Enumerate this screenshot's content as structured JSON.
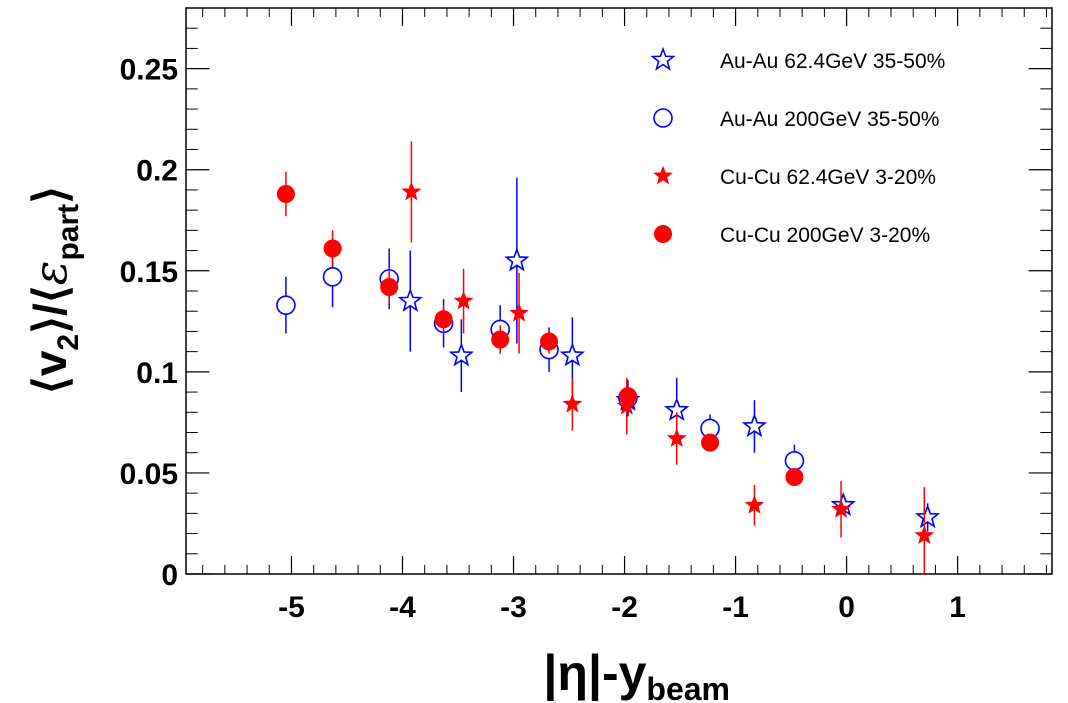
{
  "chart_data": {
    "type": "scatter",
    "xlabel": "|η|-y",
    "xlabel_sub": "beam",
    "ylabel_v": "v",
    "ylabel_v_sub": "2",
    "ylabel_eps": "ε",
    "ylabel_eps_sub": "part",
    "xlim": [
      -5.95,
      1.85
    ],
    "ylim": [
      0,
      0.28
    ],
    "x_ticks": [
      -5,
      -4,
      -3,
      -2,
      -1,
      0,
      1
    ],
    "x_tick_labels": [
      "-5",
      "-4",
      "-3",
      "-2",
      "-1",
      "0",
      "1"
    ],
    "y_ticks": [
      0,
      0.05,
      0.1,
      0.15,
      0.2,
      0.25
    ],
    "y_tick_labels": [
      "0",
      "0.05",
      "0.1",
      "0.15",
      "0.2",
      "0.25"
    ],
    "grid": false,
    "legend_position": "top-right",
    "series": [
      {
        "name": "Au-Au 62.4GeV 35-50%",
        "color": "#0000ff",
        "marker": "open-star",
        "points": [
          {
            "x": -3.93,
            "y": 0.135,
            "err": 0.025
          },
          {
            "x": -3.47,
            "y": 0.108,
            "err": 0.018
          },
          {
            "x": -2.97,
            "y": 0.155,
            "err": 0.041
          },
          {
            "x": -2.47,
            "y": 0.108,
            "err": 0.019
          },
          {
            "x": -1.97,
            "y": 0.086,
            "err": 0.008
          },
          {
            "x": -1.53,
            "y": 0.081,
            "err": 0.016
          },
          {
            "x": -0.83,
            "y": 0.073,
            "err": 0.013
          },
          {
            "x": -0.03,
            "y": 0.034,
            "err": 0.004
          },
          {
            "x": 0.73,
            "y": 0.028,
            "err": 0.007
          }
        ]
      },
      {
        "name": "Au-Au 200GeV 35-50%",
        "color": "#0000ff",
        "marker": "open-circle",
        "points": [
          {
            "x": -5.05,
            "y": 0.133,
            "err": 0.014
          },
          {
            "x": -4.63,
            "y": 0.147,
            "err": 0.015
          },
          {
            "x": -4.12,
            "y": 0.146,
            "err": 0.015
          },
          {
            "x": -3.63,
            "y": 0.124,
            "err": 0.012
          },
          {
            "x": -3.12,
            "y": 0.121,
            "err": 0.012
          },
          {
            "x": -2.68,
            "y": 0.111,
            "err": 0.011
          },
          {
            "x": -1.97,
            "y": 0.087,
            "err": 0.009
          },
          {
            "x": -1.23,
            "y": 0.072,
            "err": 0.007
          },
          {
            "x": -0.47,
            "y": 0.056,
            "err": 0.008
          }
        ]
      },
      {
        "name": "Cu-Cu 62.4GeV 3-20%",
        "color": "#ff0000",
        "marker": "filled-star",
        "points": [
          {
            "x": -3.92,
            "y": 0.189,
            "err": 0.025
          },
          {
            "x": -3.45,
            "y": 0.135,
            "err": 0.016
          },
          {
            "x": -2.95,
            "y": 0.129,
            "err": 0.02
          },
          {
            "x": -2.47,
            "y": 0.084,
            "err": 0.013
          },
          {
            "x": -1.98,
            "y": 0.083,
            "err": 0.014
          },
          {
            "x": -1.53,
            "y": 0.067,
            "err": 0.013
          },
          {
            "x": -0.83,
            "y": 0.034,
            "err": 0.01
          },
          {
            "x": -0.05,
            "y": 0.032,
            "err": 0.014
          },
          {
            "x": 0.7,
            "y": 0.019,
            "err": 0.024
          }
        ]
      },
      {
        "name": "Cu-Cu 200GeV 3-20%",
        "color": "#ff0000",
        "marker": "filled-circle",
        "points": [
          {
            "x": -5.05,
            "y": 0.188,
            "err": 0.011
          },
          {
            "x": -4.63,
            "y": 0.161,
            "err": 0.009
          },
          {
            "x": -4.12,
            "y": 0.142,
            "err": 0.008
          },
          {
            "x": -3.63,
            "y": 0.126,
            "err": 0.007
          },
          {
            "x": -3.12,
            "y": 0.116,
            "err": 0.007
          },
          {
            "x": -2.68,
            "y": 0.115,
            "err": 0.006
          },
          {
            "x": -1.97,
            "y": 0.088,
            "err": 0.005
          },
          {
            "x": -1.23,
            "y": 0.065,
            "err": 0.004
          },
          {
            "x": -0.47,
            "y": 0.048,
            "err": 0.004
          }
        ]
      }
    ]
  }
}
